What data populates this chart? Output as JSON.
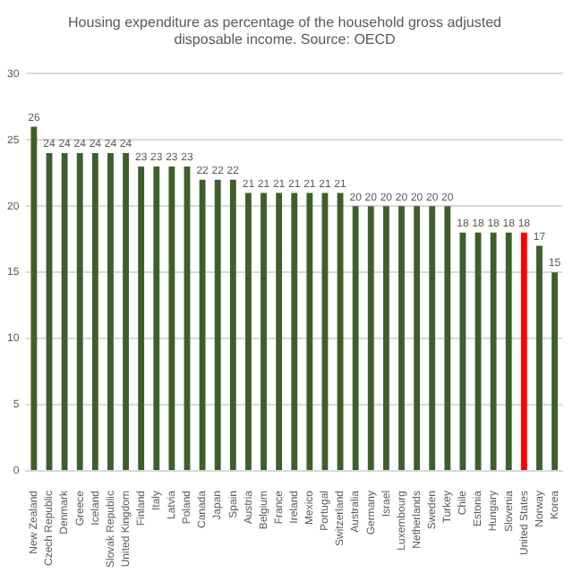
{
  "chart_data": {
    "type": "bar",
    "title": [
      "Housing expenditure as percentage of the household gross adjusted",
      "disposable income. Source: OECD"
    ],
    "categories": [
      "New Zealand",
      "Czech Republic",
      "Denmark",
      "Greece",
      "Iceland",
      "Slovak Republic",
      "United Kingdom",
      "Finland",
      "Italy",
      "Latvia",
      "Poland",
      "Canada",
      "Japan",
      "Spain",
      "Austria",
      "Belgium",
      "France",
      "Ireland",
      "Mexico",
      "Portugal",
      "Switzerland",
      "Australia",
      "Germany",
      "Israel",
      "Luxembourg",
      "Netherlands",
      "Sweden",
      "Turkey",
      "Chile",
      "Estonia",
      "Hungary",
      "Slovenia",
      "United States",
      "Norway",
      "Korea"
    ],
    "values": [
      26,
      24,
      24,
      24,
      24,
      24,
      24,
      23,
      23,
      23,
      23,
      22,
      22,
      22,
      21,
      21,
      21,
      21,
      21,
      21,
      21,
      20,
      20,
      20,
      20,
      20,
      20,
      20,
      18,
      18,
      18,
      18,
      18,
      17,
      15
    ],
    "colors": [
      "#3f5f2a",
      "#3f5f2a",
      "#3f5f2a",
      "#3f5f2a",
      "#3f5f2a",
      "#3f5f2a",
      "#3f5f2a",
      "#3f5f2a",
      "#3f5f2a",
      "#3f5f2a",
      "#3f5f2a",
      "#3f5f2a",
      "#3f5f2a",
      "#3f5f2a",
      "#3f5f2a",
      "#3f5f2a",
      "#3f5f2a",
      "#3f5f2a",
      "#3f5f2a",
      "#3f5f2a",
      "#3f5f2a",
      "#3f5f2a",
      "#3f5f2a",
      "#3f5f2a",
      "#3f5f2a",
      "#3f5f2a",
      "#3f5f2a",
      "#3f5f2a",
      "#3f5f2a",
      "#3f5f2a",
      "#3f5f2a",
      "#3f5f2a",
      "#ff0000",
      "#3f5f2a",
      "#3f5f2a"
    ],
    "ylim": [
      0,
      30
    ],
    "yticks": [
      0,
      5,
      10,
      15,
      20,
      25,
      30
    ],
    "grid": "y",
    "legend": false,
    "data_labels": true
  }
}
